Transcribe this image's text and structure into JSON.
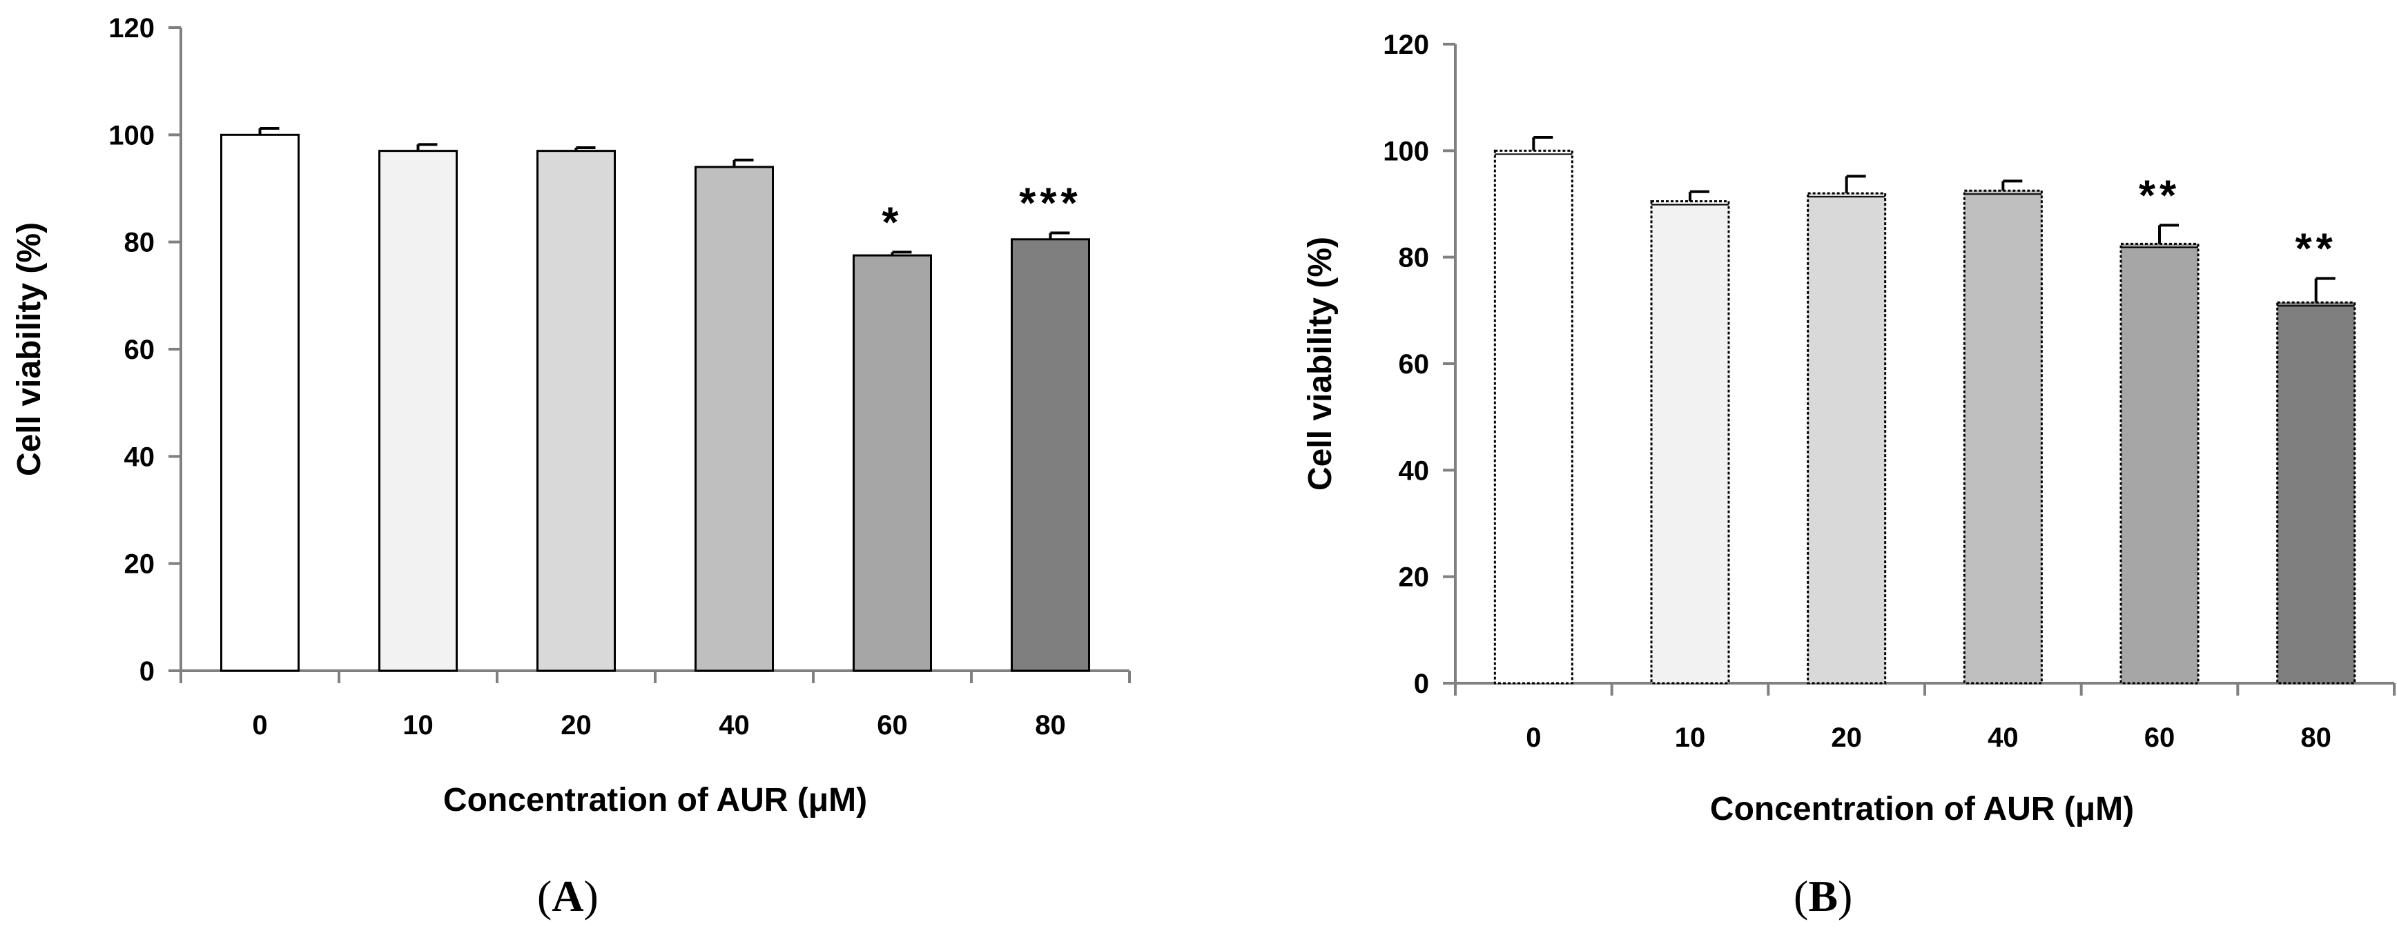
{
  "figure": {
    "panels": [
      {
        "id": "A",
        "label_prefix": "(",
        "label_letter": "A",
        "label_suffix": ")"
      },
      {
        "id": "B",
        "label_prefix": "(",
        "label_letter": "B",
        "label_suffix": ")"
      }
    ]
  },
  "chart_data": [
    {
      "type": "bar",
      "panel": "A",
      "categories": [
        "0",
        "10",
        "20",
        "40",
        "60",
        "80"
      ],
      "values": [
        100,
        97,
        97,
        94,
        77.5,
        80.5
      ],
      "errors": [
        1.2,
        1.2,
        0.6,
        1.3,
        0.6,
        1.2
      ],
      "significance": [
        "",
        "",
        "",
        "",
        "*",
        "***"
      ],
      "bar_colors": [
        "#ffffff",
        "#f2f2f2",
        "#d9d9d9",
        "#bfbfbf",
        "#a6a6a6",
        "#7f7f7f"
      ],
      "xlabel": "Concentration of AUR (μM)",
      "ylabel": "Cell viability (%)",
      "ylim": [
        0,
        120
      ],
      "yticks": [
        "0",
        "20",
        "40",
        "60",
        "80",
        "100",
        "120"
      ],
      "grid": false
    },
    {
      "type": "bar",
      "panel": "B",
      "categories": [
        "0",
        "10",
        "20",
        "40",
        "60",
        "80"
      ],
      "values": [
        100,
        90.5,
        92,
        92.5,
        82.5,
        71.5
      ],
      "errors": [
        2.5,
        1.8,
        3.2,
        1.8,
        3.5,
        4.5
      ],
      "significance": [
        "",
        "",
        "",
        "",
        "**",
        "**"
      ],
      "bar_colors": [
        "#ffffff",
        "#f2f2f2",
        "#d9d9d9",
        "#bfbfbf",
        "#a6a6a6",
        "#7f7f7f"
      ],
      "xlabel": "Concentration of AUR (μM)",
      "ylabel": "Cell viability (%)",
      "ylim": [
        0,
        120
      ],
      "yticks": [
        "0",
        "20",
        "40",
        "60",
        "80",
        "100",
        "120"
      ],
      "grid": false
    }
  ]
}
